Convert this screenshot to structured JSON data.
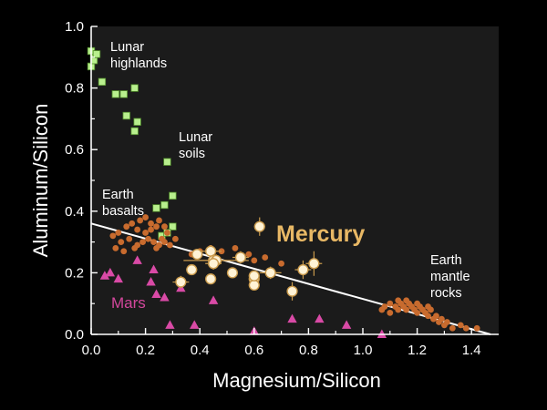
{
  "chart_data": {
    "type": "scatter",
    "xlabel": "Magnesium/Silicon",
    "ylabel": "Aluminum/Silicon",
    "xlim": [
      0,
      1.5
    ],
    "ylim": [
      0,
      1.0
    ],
    "xticks": [
      "0.0",
      "0.2",
      "0.4",
      "0.6",
      "0.8",
      "1.0",
      "1.2",
      "1.4"
    ],
    "yticks": [
      "0.0",
      "0.2",
      "0.4",
      "0.6",
      "0.8",
      "1.0"
    ],
    "x_tick_values": [
      0,
      0.2,
      0.4,
      0.6,
      0.8,
      1.0,
      1.2,
      1.4
    ],
    "y_tick_values": [
      0,
      0.2,
      0.4,
      0.6,
      0.8,
      1.0
    ],
    "grid": false,
    "colors": {
      "background": "#000000",
      "plot_background": "#1b1b1b",
      "axis": "#ffffff",
      "lunar": "#b8ef8d",
      "lunar_edge": "#4f8a2a",
      "earth": "#c86b2e",
      "mars": "#d94aa6",
      "mercury": "#fff3d6",
      "mercury_edge": "#c99a4c",
      "mercury_label": "#e8b865",
      "line": "#ffffff"
    },
    "annotations": [
      {
        "text": [
          "Lunar",
          "highlands"
        ],
        "style": "ann"
      },
      {
        "text": [
          "Lunar",
          "soils"
        ],
        "style": "ann"
      },
      {
        "text": [
          "Earth",
          "basalts"
        ],
        "style": "ann"
      },
      {
        "text": [
          "Mercury"
        ],
        "style": "ann-mercury"
      },
      {
        "text": [
          "Mars"
        ],
        "style": "ann-mars"
      },
      {
        "text": [
          "Earth",
          "mantle",
          "rocks"
        ],
        "style": "ann"
      }
    ],
    "trend_line": {
      "x": [
        0,
        1.47
      ],
      "y": [
        0.36,
        0.0
      ]
    },
    "series": [
      {
        "key": "lunar",
        "marker": "square",
        "points": [
          [
            0.0,
            0.87
          ],
          [
            0.01,
            0.89
          ],
          [
            0.01,
            0.91
          ],
          [
            0.0,
            0.92
          ],
          [
            0.02,
            0.91
          ],
          [
            0.04,
            0.82
          ],
          [
            0.09,
            0.78
          ],
          [
            0.12,
            0.78
          ],
          [
            0.13,
            0.71
          ],
          [
            0.16,
            0.66
          ],
          [
            0.17,
            0.69
          ],
          [
            0.16,
            0.8
          ],
          [
            0.28,
            0.56
          ],
          [
            0.3,
            0.45
          ],
          [
            0.27,
            0.42
          ],
          [
            0.24,
            0.41
          ],
          [
            0.3,
            0.35
          ],
          [
            0.26,
            0.32
          ],
          [
            0.28,
            0.33
          ]
        ]
      },
      {
        "key": "earth",
        "marker": "circle",
        "points": [
          [
            0.13,
            0.35
          ],
          [
            0.15,
            0.36
          ],
          [
            0.18,
            0.37
          ],
          [
            0.2,
            0.38
          ],
          [
            0.22,
            0.36
          ],
          [
            0.24,
            0.35
          ],
          [
            0.25,
            0.37
          ],
          [
            0.27,
            0.35
          ],
          [
            0.17,
            0.34
          ],
          [
            0.2,
            0.33
          ],
          [
            0.22,
            0.34
          ],
          [
            0.1,
            0.33
          ],
          [
            0.08,
            0.32
          ],
          [
            0.11,
            0.3
          ],
          [
            0.14,
            0.31
          ],
          [
            0.17,
            0.29
          ],
          [
            0.19,
            0.3
          ],
          [
            0.21,
            0.31
          ],
          [
            0.23,
            0.3
          ],
          [
            0.25,
            0.29
          ],
          [
            0.27,
            0.3
          ],
          [
            0.29,
            0.29
          ],
          [
            0.26,
            0.31
          ],
          [
            0.28,
            0.33
          ],
          [
            0.31,
            0.31
          ],
          [
            0.09,
            0.28
          ],
          [
            0.12,
            0.27
          ],
          [
            0.16,
            0.28
          ],
          [
            0.24,
            0.28
          ],
          [
            0.37,
            0.26
          ],
          [
            0.4,
            0.27
          ],
          [
            0.44,
            0.28
          ],
          [
            0.48,
            0.27
          ],
          [
            0.53,
            0.28
          ],
          [
            0.58,
            0.26
          ],
          [
            0.6,
            0.24
          ],
          [
            0.64,
            0.25
          ],
          [
            0.7,
            0.23
          ],
          [
            1.07,
            0.08
          ],
          [
            1.08,
            0.09
          ],
          [
            1.1,
            0.1
          ],
          [
            1.12,
            0.09
          ],
          [
            1.13,
            0.08
          ],
          [
            1.14,
            0.1
          ],
          [
            1.15,
            0.09
          ],
          [
            1.16,
            0.08
          ],
          [
            1.17,
            0.1
          ],
          [
            1.18,
            0.09
          ],
          [
            1.19,
            0.08
          ],
          [
            1.2,
            0.07
          ],
          [
            1.21,
            0.09
          ],
          [
            1.22,
            0.08
          ],
          [
            1.23,
            0.07
          ],
          [
            1.24,
            0.06
          ],
          [
            1.25,
            0.08
          ],
          [
            1.26,
            0.05
          ],
          [
            1.27,
            0.06
          ],
          [
            1.28,
            0.04
          ],
          [
            1.29,
            0.05
          ],
          [
            1.3,
            0.03
          ],
          [
            1.31,
            0.04
          ],
          [
            1.33,
            0.02
          ],
          [
            1.36,
            0.03
          ],
          [
            1.38,
            0.02
          ],
          [
            1.42,
            0.02
          ],
          [
            1.1,
            0.07
          ],
          [
            1.13,
            0.11
          ],
          [
            1.16,
            0.11
          ],
          [
            1.2,
            0.1
          ],
          [
            1.24,
            0.09
          ]
        ]
      },
      {
        "key": "mars",
        "marker": "triangle",
        "points": [
          [
            0.05,
            0.19
          ],
          [
            0.07,
            0.2
          ],
          [
            0.17,
            0.24
          ],
          [
            0.1,
            0.18
          ],
          [
            0.22,
            0.17
          ],
          [
            0.23,
            0.21
          ],
          [
            0.24,
            0.13
          ],
          [
            0.27,
            0.12
          ],
          [
            0.33,
            0.15
          ],
          [
            0.45,
            0.11
          ],
          [
            0.29,
            0.03
          ],
          [
            0.38,
            0.03
          ],
          [
            0.6,
            0.01
          ],
          [
            0.74,
            0.05
          ],
          [
            0.84,
            0.05
          ],
          [
            0.94,
            0.03
          ],
          [
            1.07,
            0.0
          ]
        ]
      },
      {
        "key": "mercury",
        "marker": "circle-error",
        "points": [
          [
            0.33,
            0.17
          ],
          [
            0.37,
            0.21
          ],
          [
            0.39,
            0.26
          ],
          [
            0.44,
            0.27
          ],
          [
            0.44,
            0.18
          ],
          [
            0.45,
            0.24
          ],
          [
            0.46,
            0.24
          ],
          [
            0.52,
            0.2
          ],
          [
            0.55,
            0.25
          ],
          [
            0.6,
            0.18
          ],
          [
            0.6,
            0.16
          ],
          [
            0.6,
            0.19
          ],
          [
            0.62,
            0.35
          ],
          [
            0.66,
            0.2
          ],
          [
            0.74,
            0.14
          ],
          [
            0.78,
            0.21
          ],
          [
            0.82,
            0.23
          ],
          [
            0.45,
            0.23
          ]
        ],
        "xerr": [
          0.03,
          0.02,
          0.02,
          0.04,
          0.02,
          0.05,
          0.12,
          0.02,
          0.03,
          0.02,
          0.02,
          0.02,
          0.02,
          0.04,
          0.02,
          0.03,
          0.03,
          0.03
        ],
        "yerr": [
          0.02,
          0.01,
          0.01,
          0.02,
          0.01,
          0.02,
          0.02,
          0.01,
          0.02,
          0.01,
          0.01,
          0.01,
          0.03,
          0.02,
          0.03,
          0.03,
          0.04,
          0.02
        ]
      }
    ]
  }
}
